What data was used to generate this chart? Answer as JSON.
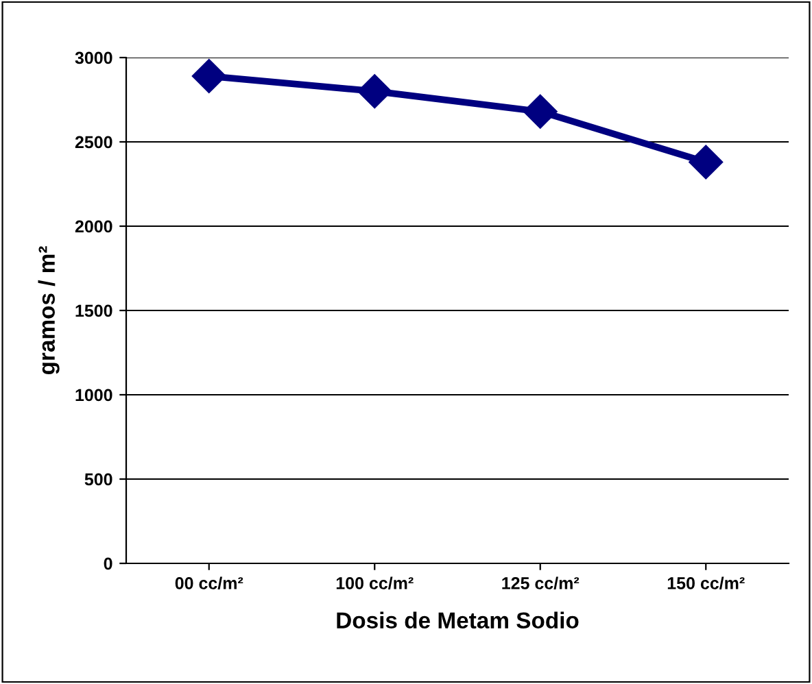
{
  "chart_data": {
    "type": "line",
    "xlabel": "Dosis de Metam Sodio",
    "ylabel": "gramos / m²",
    "categories": [
      "00 cc/m²",
      "100 cc/m²",
      "125 cc/m²",
      "150 cc/m²"
    ],
    "series": [
      {
        "color": "#000080",
        "values": [
          2890,
          2800,
          2680,
          2380
        ]
      }
    ],
    "ylim": [
      0,
      3000
    ],
    "yticks": [
      0,
      500,
      1000,
      1500,
      2000,
      2500,
      3000
    ],
    "grid": "y",
    "marker": "diamond",
    "line_style": "solid",
    "legend": false
  }
}
